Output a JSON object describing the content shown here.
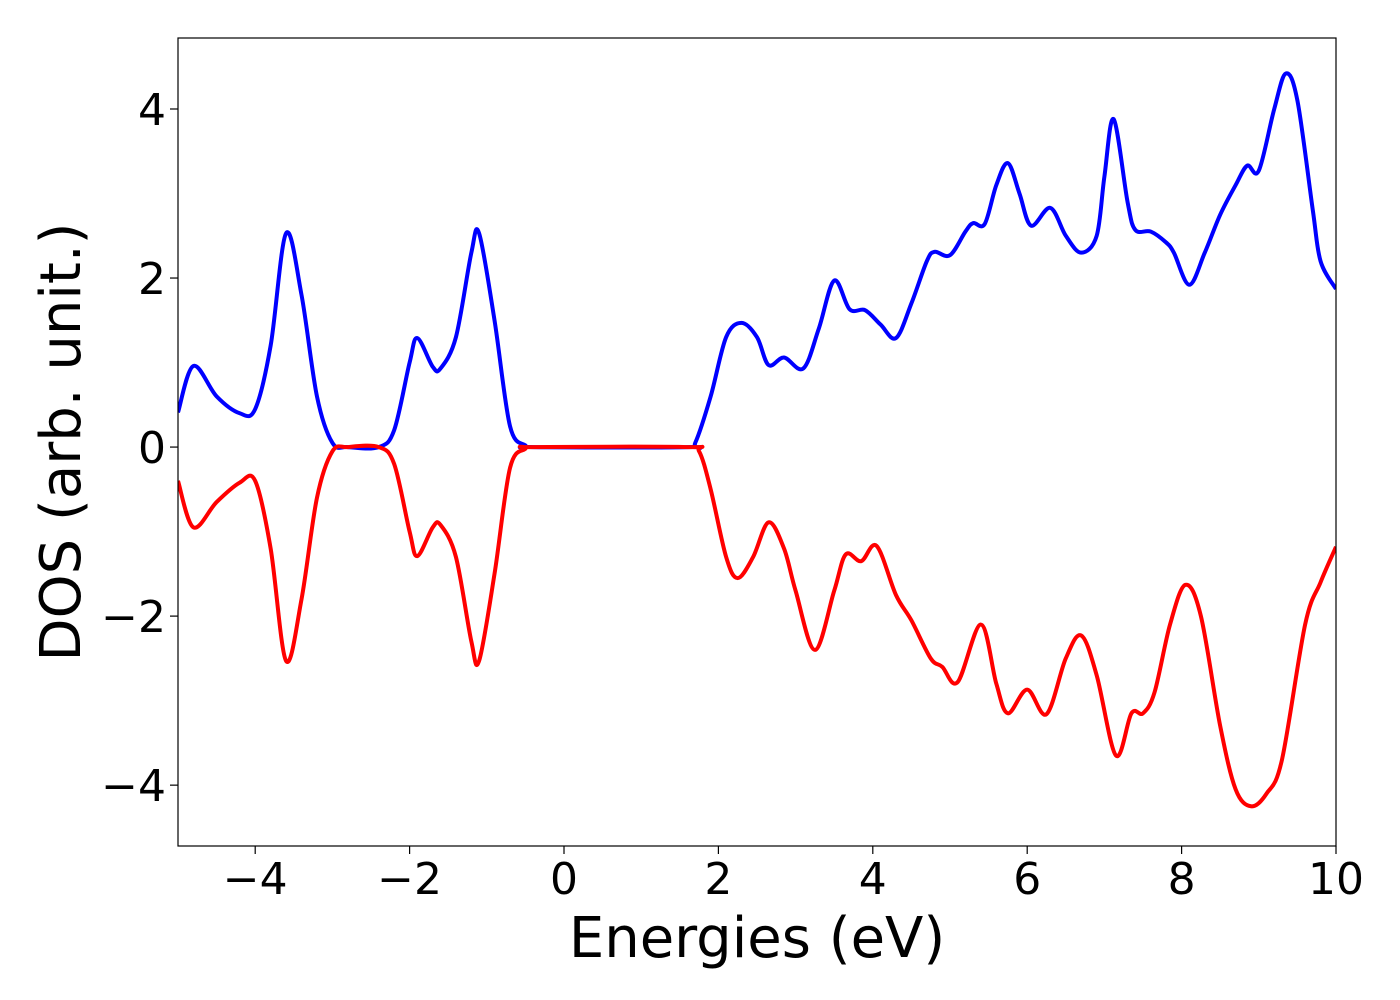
{
  "chart_data": {
    "type": "line",
    "xlabel": "Energies (eV)",
    "ylabel": "DOS (arb. unit.)",
    "xlim": [
      -5,
      10
    ],
    "ylim": [
      -4.72,
      4.84
    ],
    "xticks": [
      {
        "value": -4,
        "label": "−4"
      },
      {
        "value": -2,
        "label": "−2"
      },
      0,
      2,
      4,
      6,
      8,
      10
    ],
    "yticks": [
      {
        "value": -4,
        "label": "−4"
      },
      {
        "value": -2,
        "label": "−2"
      },
      0,
      2,
      4
    ],
    "grid": false,
    "series": [
      {
        "color": "#0000ff",
        "x": [
          -5,
          -4.8,
          -4.5,
          -4.2,
          -4.0,
          -3.8,
          -3.6,
          -3.4,
          -3.2,
          -3.0,
          -2.8,
          -2.4,
          -2.2,
          -2.0,
          -1.9,
          -1.7,
          -1.6,
          -1.4,
          -1.2,
          -1.1,
          -0.9,
          -0.7,
          -0.5,
          -0.4,
          1.6,
          1.7,
          1.9,
          2.1,
          2.3,
          2.5,
          2.65,
          2.85,
          3.1,
          3.3,
          3.5,
          3.7,
          3.9,
          4.1,
          4.3,
          4.5,
          4.7,
          4.8,
          5.0,
          5.2,
          5.3,
          5.45,
          5.6,
          5.75,
          5.9,
          6.05,
          6.3,
          6.5,
          6.7,
          6.9,
          7.0,
          7.12,
          7.3,
          7.4,
          7.6,
          7.8,
          7.9,
          8.1,
          8.3,
          8.5,
          8.7,
          8.85,
          9.0,
          9.2,
          9.35,
          9.5,
          9.7,
          9.8,
          10.0
        ],
        "values": [
          0.41,
          0.96,
          0.6,
          0.4,
          0.45,
          1.2,
          2.53,
          1.8,
          0.6,
          0.05,
          0,
          0,
          0.2,
          1.0,
          1.29,
          0.95,
          0.93,
          1.3,
          2.3,
          2.53,
          1.5,
          0.25,
          0.02,
          0,
          0,
          0.05,
          0.6,
          1.3,
          1.47,
          1.3,
          0.97,
          1.06,
          0.93,
          1.4,
          1.97,
          1.63,
          1.62,
          1.45,
          1.29,
          1.7,
          2.2,
          2.31,
          2.27,
          2.55,
          2.65,
          2.64,
          3.1,
          3.36,
          3.0,
          2.62,
          2.83,
          2.5,
          2.3,
          2.5,
          3.2,
          3.88,
          2.9,
          2.57,
          2.55,
          2.42,
          2.3,
          1.92,
          2.3,
          2.75,
          3.1,
          3.33,
          3.27,
          4.0,
          4.42,
          4.1,
          2.8,
          2.2,
          1.87
        ]
      },
      {
        "color": "#ff0000",
        "x": [
          -5,
          -4.8,
          -4.5,
          -4.2,
          -4.0,
          -3.8,
          -3.6,
          -3.4,
          -3.2,
          -3.0,
          -2.8,
          -2.4,
          -2.2,
          -2.0,
          -1.9,
          -1.7,
          -1.6,
          -1.4,
          -1.2,
          -1.1,
          -0.9,
          -0.7,
          -0.5,
          -0.4,
          1.6,
          1.75,
          1.9,
          2.1,
          2.25,
          2.45,
          2.65,
          2.85,
          3.0,
          3.25,
          3.5,
          3.65,
          3.85,
          4.05,
          4.3,
          4.5,
          4.75,
          4.9,
          5.1,
          5.4,
          5.6,
          5.75,
          6.0,
          6.25,
          6.5,
          6.7,
          6.9,
          7.15,
          7.35,
          7.5,
          7.65,
          7.85,
          8.05,
          8.25,
          8.5,
          8.7,
          8.9,
          9.1,
          9.3,
          9.6,
          9.8,
          10.0
        ],
        "values": [
          -0.4,
          -0.95,
          -0.65,
          -0.42,
          -0.4,
          -1.2,
          -2.53,
          -1.8,
          -0.6,
          -0.05,
          0,
          0,
          -0.2,
          -1.0,
          -1.29,
          -0.95,
          -0.92,
          -1.3,
          -2.3,
          -2.53,
          -1.5,
          -0.25,
          -0.02,
          0,
          0,
          -0.05,
          -0.5,
          -1.3,
          -1.55,
          -1.3,
          -0.89,
          -1.2,
          -1.7,
          -2.4,
          -1.7,
          -1.27,
          -1.35,
          -1.17,
          -1.75,
          -2.05,
          -2.5,
          -2.6,
          -2.78,
          -2.1,
          -2.8,
          -3.15,
          -2.87,
          -3.16,
          -2.5,
          -2.23,
          -2.7,
          -3.65,
          -3.15,
          -3.15,
          -2.9,
          -2.1,
          -1.63,
          -2.0,
          -3.3,
          -4.05,
          -4.25,
          -4.1,
          -3.7,
          -2.1,
          -1.6,
          -1.18
        ]
      }
    ]
  }
}
